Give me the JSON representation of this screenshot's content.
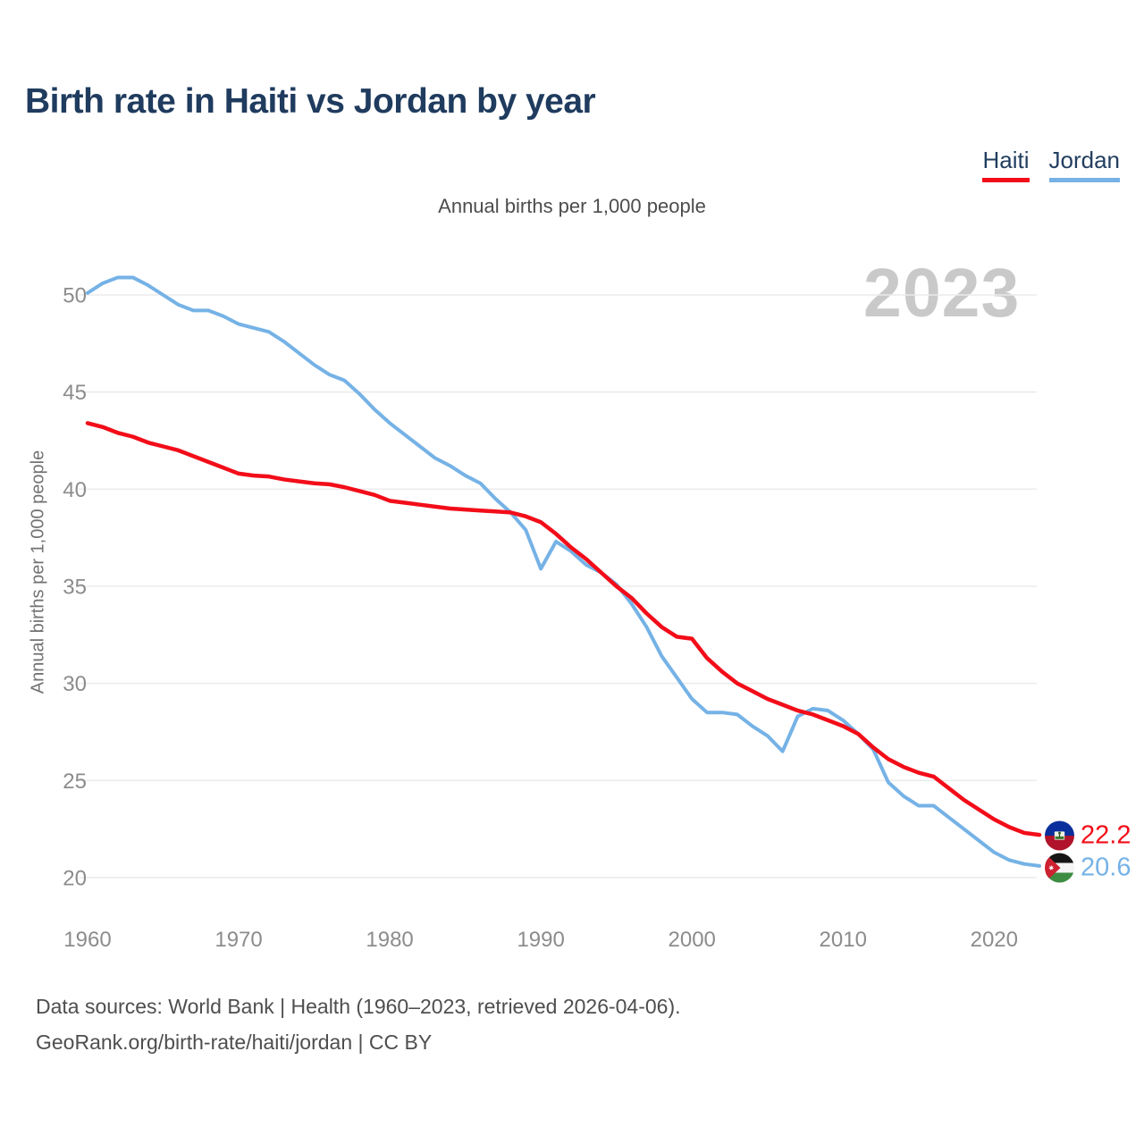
{
  "header": {
    "title": "Birth rate in Haiti vs Jordan by year"
  },
  "legend": {
    "items": [
      {
        "label": "Haiti",
        "color": "#f20d19"
      },
      {
        "label": "Jordan",
        "color": "#75b2e6"
      }
    ]
  },
  "chart": {
    "subtitle": "Annual births per 1,000 people",
    "y_axis_label": "Annual births per 1,000 people",
    "watermark": "2023"
  },
  "chart_data": {
    "type": "line",
    "title": "Birth rate in Haiti vs Jordan by year",
    "subtitle": "Annual births per 1,000 people",
    "xlabel": "",
    "ylabel": "Annual births per 1,000 people",
    "x": [
      1960,
      1961,
      1962,
      1963,
      1964,
      1965,
      1966,
      1967,
      1968,
      1969,
      1970,
      1971,
      1972,
      1973,
      1974,
      1975,
      1976,
      1977,
      1978,
      1979,
      1980,
      1981,
      1982,
      1983,
      1984,
      1985,
      1986,
      1987,
      1988,
      1989,
      1990,
      1991,
      1992,
      1993,
      1994,
      1995,
      1996,
      1997,
      1998,
      1999,
      2000,
      2001,
      2002,
      2003,
      2004,
      2005,
      2006,
      2007,
      2008,
      2009,
      2010,
      2011,
      2012,
      2013,
      2014,
      2015,
      2016,
      2017,
      2018,
      2019,
      2020,
      2021,
      2022,
      2023
    ],
    "series": [
      {
        "name": "Haiti",
        "color": "#f20d19",
        "end_value_label": "22.2",
        "values": [
          43.4,
          43.2,
          42.9,
          42.7,
          42.4,
          42.2,
          42.0,
          41.7,
          41.4,
          41.1,
          40.8,
          40.7,
          40.65,
          40.5,
          40.4,
          40.3,
          40.25,
          40.1,
          39.9,
          39.7,
          39.4,
          39.3,
          39.2,
          39.1,
          39.0,
          38.95,
          38.9,
          38.85,
          38.8,
          38.6,
          38.3,
          37.7,
          37.0,
          36.4,
          35.7,
          35.0,
          34.4,
          33.6,
          32.9,
          32.4,
          32.3,
          31.3,
          30.6,
          30.0,
          29.6,
          29.2,
          28.9,
          28.6,
          28.4,
          28.1,
          27.8,
          27.4,
          26.7,
          26.1,
          25.7,
          25.4,
          25.2,
          24.6,
          24.0,
          23.5,
          23.0,
          22.6,
          22.3,
          22.2
        ]
      },
      {
        "name": "Jordan",
        "color": "#75b2e6",
        "end_value_label": "20.6",
        "values": [
          50.1,
          50.6,
          50.9,
          50.9,
          50.5,
          50.0,
          49.5,
          49.2,
          49.2,
          48.9,
          48.5,
          48.3,
          48.1,
          47.6,
          47.0,
          46.4,
          45.9,
          45.6,
          44.9,
          44.1,
          43.4,
          42.8,
          42.2,
          41.6,
          41.2,
          40.7,
          40.3,
          39.5,
          38.8,
          37.9,
          35.9,
          37.3,
          36.8,
          36.1,
          35.7,
          35.1,
          34.1,
          32.9,
          31.4,
          30.3,
          29.2,
          28.5,
          28.5,
          28.4,
          27.8,
          27.3,
          26.5,
          28.3,
          28.7,
          28.6,
          28.1,
          27.4,
          26.6,
          24.9,
          24.2,
          23.7,
          23.7,
          23.1,
          22.5,
          21.9,
          21.3,
          20.9,
          20.7,
          20.6
        ]
      }
    ],
    "x_ticks": [
      1960,
      1970,
      1980,
      1990,
      2000,
      2010,
      2020
    ],
    "y_ticks": [
      20,
      25,
      30,
      35,
      40,
      45,
      50
    ],
    "ylim": [
      18.5,
      52
    ],
    "xlim": [
      1960,
      2023
    ],
    "grid": true,
    "legend_position": "top-right",
    "watermark": "2023"
  },
  "footer": {
    "line1": "Data sources: World Bank | Health (1960–2023, retrieved 2026-04-06).",
    "line2": "GeoRank.org/birth-rate/haiti/jordan | CC BY"
  }
}
